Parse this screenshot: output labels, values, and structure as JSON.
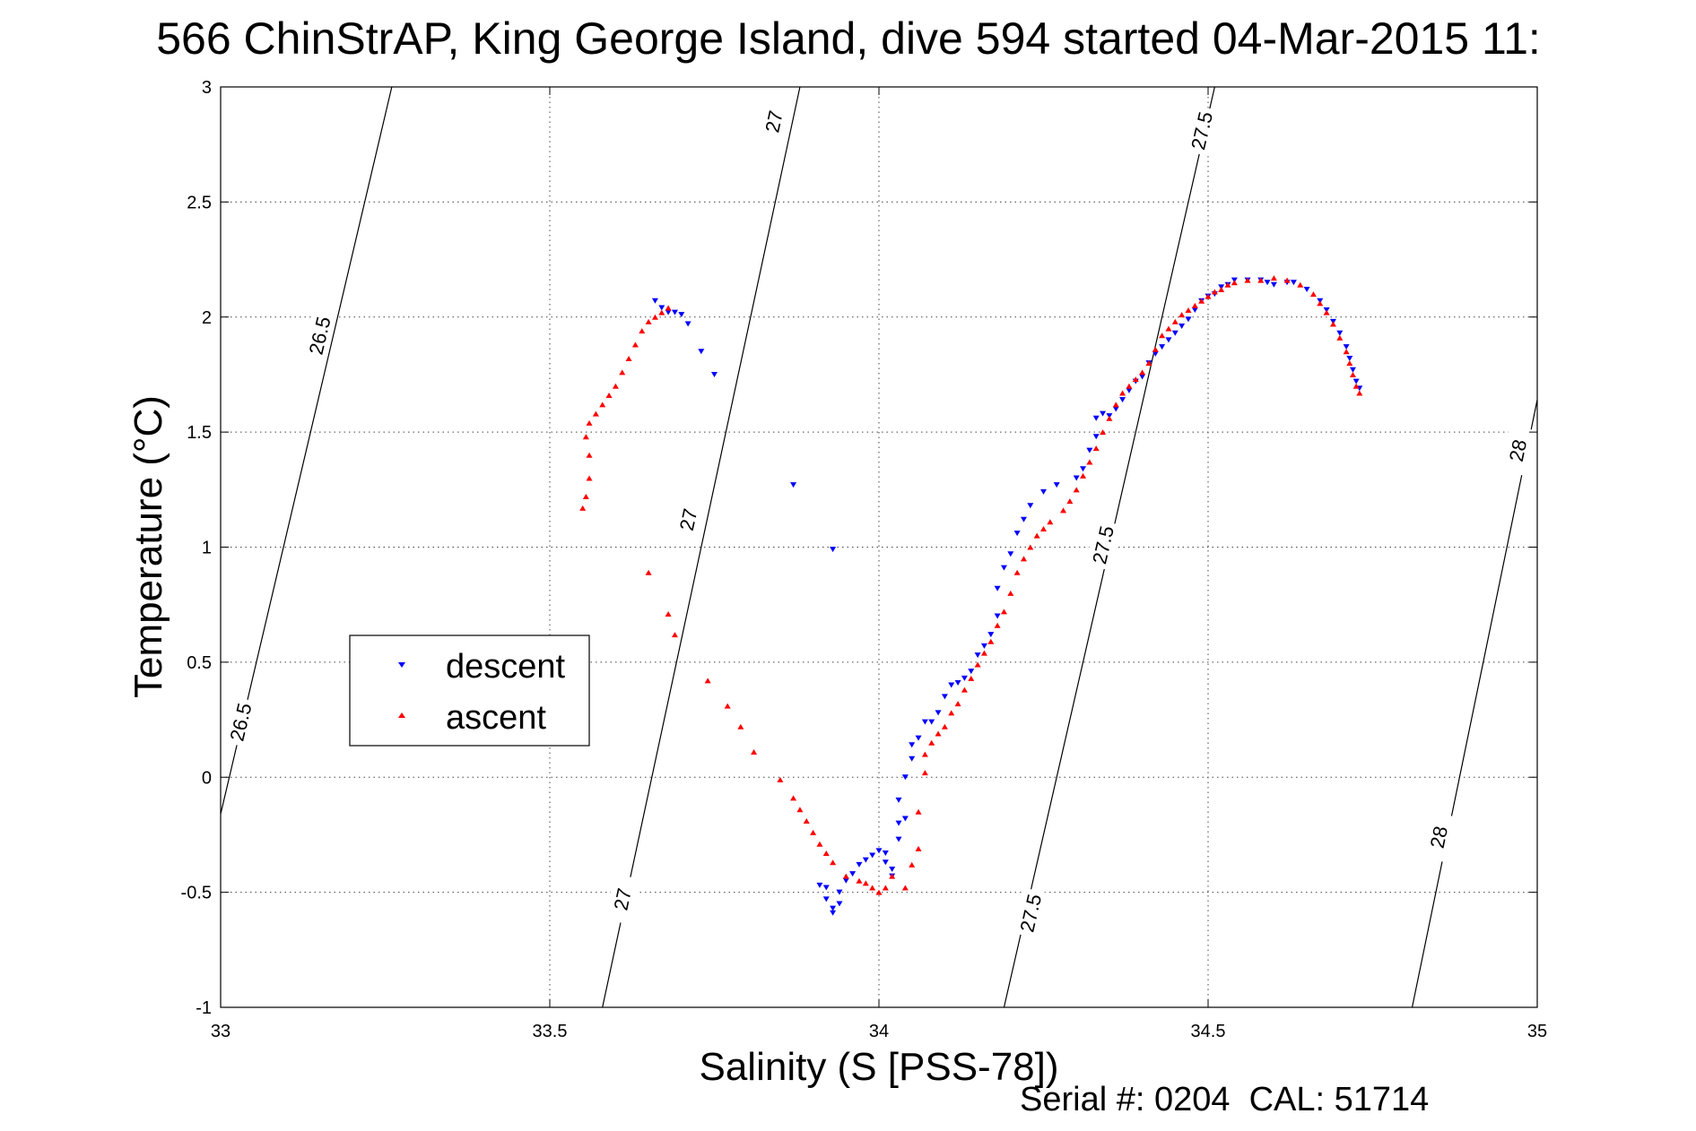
{
  "chart_data": {
    "type": "scatter",
    "title": "566 ChinStrAP, King George Island, dive 594 started 04-Mar-2015 11:",
    "xlabel": "Salinity (S [PSS-78])",
    "ylabel": "Temperature (°C)",
    "xlim": [
      33,
      35
    ],
    "ylim": [
      -1,
      3
    ],
    "xticks": [
      "33",
      "33.5",
      "34",
      "34.5",
      "35"
    ],
    "yticks": [
      "-1",
      "-0.5",
      "0",
      "0.5",
      "1",
      "1.5",
      "2",
      "2.5",
      "3"
    ],
    "grid": true,
    "legend_position": "center-left",
    "footer": "Serial #: 0204  CAL: 51714",
    "series": [
      {
        "name": "descent",
        "color": "#0000ff",
        "marker": "triangle-down",
        "points": [
          [
            33.66,
            2.07
          ],
          [
            33.67,
            2.04
          ],
          [
            33.68,
            2.02
          ],
          [
            33.69,
            2.02
          ],
          [
            33.7,
            2.01
          ],
          [
            33.71,
            1.97
          ],
          [
            33.73,
            1.85
          ],
          [
            33.75,
            1.75
          ],
          [
            33.87,
            1.27
          ],
          [
            33.93,
            0.99
          ],
          [
            33.91,
            -0.47
          ],
          [
            33.92,
            -0.48
          ],
          [
            33.92,
            -0.53
          ],
          [
            33.93,
            -0.57
          ],
          [
            33.93,
            -0.59
          ],
          [
            33.94,
            -0.55
          ],
          [
            33.94,
            -0.5
          ],
          [
            33.95,
            -0.45
          ],
          [
            33.96,
            -0.42
          ],
          [
            33.97,
            -0.38
          ],
          [
            33.98,
            -0.36
          ],
          [
            33.99,
            -0.34
          ],
          [
            34.0,
            -0.32
          ],
          [
            34.01,
            -0.33
          ],
          [
            34.01,
            -0.37
          ],
          [
            34.02,
            -0.4
          ],
          [
            34.02,
            -0.43
          ],
          [
            34.03,
            -0.27
          ],
          [
            34.03,
            -0.2
          ],
          [
            34.04,
            -0.18
          ],
          [
            34.03,
            -0.1
          ],
          [
            34.04,
            0.0
          ],
          [
            34.05,
            0.08
          ],
          [
            34.05,
            0.14
          ],
          [
            34.06,
            0.17
          ],
          [
            34.07,
            0.24
          ],
          [
            34.08,
            0.24
          ],
          [
            34.09,
            0.28
          ],
          [
            34.1,
            0.35
          ],
          [
            34.11,
            0.4
          ],
          [
            34.12,
            0.41
          ],
          [
            34.13,
            0.43
          ],
          [
            34.14,
            0.46
          ],
          [
            34.15,
            0.53
          ],
          [
            34.16,
            0.57
          ],
          [
            34.17,
            0.62
          ],
          [
            34.18,
            0.7
          ],
          [
            34.18,
            0.82
          ],
          [
            34.19,
            0.91
          ],
          [
            34.2,
            0.97
          ],
          [
            34.21,
            1.06
          ],
          [
            34.22,
            1.12
          ],
          [
            34.23,
            1.18
          ],
          [
            34.25,
            1.24
          ],
          [
            34.27,
            1.27
          ],
          [
            34.3,
            1.3
          ],
          [
            34.31,
            1.34
          ],
          [
            34.32,
            1.42
          ],
          [
            34.33,
            1.48
          ],
          [
            34.33,
            1.56
          ],
          [
            34.34,
            1.58
          ],
          [
            34.35,
            1.57
          ],
          [
            34.36,
            1.6
          ],
          [
            34.37,
            1.64
          ],
          [
            34.38,
            1.68
          ],
          [
            34.39,
            1.72
          ],
          [
            34.4,
            1.74
          ],
          [
            34.41,
            1.8
          ],
          [
            34.42,
            1.84
          ],
          [
            34.43,
            1.87
          ],
          [
            34.44,
            1.9
          ],
          [
            34.45,
            1.93
          ],
          [
            34.46,
            1.96
          ],
          [
            34.47,
            1.99
          ],
          [
            34.48,
            2.03
          ],
          [
            34.49,
            2.07
          ],
          [
            34.5,
            2.09
          ],
          [
            34.51,
            2.1
          ],
          [
            34.52,
            2.13
          ],
          [
            34.53,
            2.14
          ],
          [
            34.54,
            2.16
          ],
          [
            34.56,
            2.16
          ],
          [
            34.58,
            2.16
          ],
          [
            34.59,
            2.15
          ],
          [
            34.6,
            2.14
          ],
          [
            34.62,
            2.15
          ],
          [
            34.63,
            2.15
          ],
          [
            34.65,
            2.12
          ],
          [
            34.67,
            2.07
          ],
          [
            34.68,
            2.03
          ],
          [
            34.69,
            1.98
          ],
          [
            34.7,
            1.93
          ],
          [
            34.71,
            1.87
          ],
          [
            34.715,
            1.82
          ],
          [
            34.72,
            1.77
          ],
          [
            34.725,
            1.72
          ],
          [
            34.73,
            1.69
          ]
        ]
      },
      {
        "name": "ascent",
        "color": "#ff0000",
        "marker": "triangle-up",
        "points": [
          [
            33.68,
            2.04
          ],
          [
            33.67,
            2.02
          ],
          [
            33.66,
            2.0
          ],
          [
            33.65,
            1.98
          ],
          [
            33.64,
            1.94
          ],
          [
            33.63,
            1.88
          ],
          [
            33.62,
            1.82
          ],
          [
            33.61,
            1.76
          ],
          [
            33.6,
            1.7
          ],
          [
            33.59,
            1.66
          ],
          [
            33.58,
            1.62
          ],
          [
            33.57,
            1.58
          ],
          [
            33.56,
            1.54
          ],
          [
            33.555,
            1.48
          ],
          [
            33.56,
            1.4
          ],
          [
            33.56,
            1.3
          ],
          [
            33.555,
            1.22
          ],
          [
            33.55,
            1.17
          ],
          [
            33.65,
            0.89
          ],
          [
            33.68,
            0.71
          ],
          [
            33.69,
            0.62
          ],
          [
            33.74,
            0.42
          ],
          [
            33.77,
            0.31
          ],
          [
            33.79,
            0.22
          ],
          [
            33.81,
            0.11
          ],
          [
            33.85,
            -0.01
          ],
          [
            33.87,
            -0.09
          ],
          [
            33.88,
            -0.14
          ],
          [
            33.89,
            -0.19
          ],
          [
            33.9,
            -0.24
          ],
          [
            33.91,
            -0.29
          ],
          [
            33.92,
            -0.33
          ],
          [
            33.93,
            -0.37
          ],
          [
            33.95,
            -0.43
          ],
          [
            33.97,
            -0.45
          ],
          [
            33.98,
            -0.46
          ],
          [
            33.99,
            -0.48
          ],
          [
            34.0,
            -0.5
          ],
          [
            34.01,
            -0.48
          ],
          [
            34.02,
            -0.43
          ],
          [
            34.04,
            -0.48
          ],
          [
            34.05,
            -0.38
          ],
          [
            34.06,
            -0.31
          ],
          [
            34.06,
            -0.15
          ],
          [
            34.07,
            0.02
          ],
          [
            34.07,
            0.1
          ],
          [
            34.08,
            0.15
          ],
          [
            34.09,
            0.19
          ],
          [
            34.1,
            0.22
          ],
          [
            34.11,
            0.28
          ],
          [
            34.12,
            0.32
          ],
          [
            34.13,
            0.38
          ],
          [
            34.14,
            0.43
          ],
          [
            34.15,
            0.49
          ],
          [
            34.16,
            0.54
          ],
          [
            34.17,
            0.59
          ],
          [
            34.18,
            0.66
          ],
          [
            34.19,
            0.72
          ],
          [
            34.2,
            0.8
          ],
          [
            34.21,
            0.89
          ],
          [
            34.22,
            0.95
          ],
          [
            34.23,
            1.0
          ],
          [
            34.24,
            1.05
          ],
          [
            34.25,
            1.08
          ],
          [
            34.26,
            1.11
          ],
          [
            34.28,
            1.16
          ],
          [
            34.29,
            1.2
          ],
          [
            34.3,
            1.25
          ],
          [
            34.31,
            1.31
          ],
          [
            34.32,
            1.37
          ],
          [
            34.33,
            1.43
          ],
          [
            34.34,
            1.5
          ],
          [
            34.35,
            1.56
          ],
          [
            34.36,
            1.62
          ],
          [
            34.37,
            1.67
          ],
          [
            34.38,
            1.7
          ],
          [
            34.39,
            1.73
          ],
          [
            34.4,
            1.76
          ],
          [
            34.41,
            1.8
          ],
          [
            34.42,
            1.86
          ],
          [
            34.43,
            1.92
          ],
          [
            34.44,
            1.95
          ],
          [
            34.45,
            1.98
          ],
          [
            34.46,
            2.01
          ],
          [
            34.47,
            2.03
          ],
          [
            34.48,
            2.05
          ],
          [
            34.49,
            2.07
          ],
          [
            34.5,
            2.09
          ],
          [
            34.51,
            2.11
          ],
          [
            34.52,
            2.12
          ],
          [
            34.53,
            2.14
          ],
          [
            34.54,
            2.15
          ],
          [
            34.56,
            2.16
          ],
          [
            34.58,
            2.16
          ],
          [
            34.6,
            2.17
          ],
          [
            34.62,
            2.16
          ],
          [
            34.64,
            2.14
          ],
          [
            34.66,
            2.1
          ],
          [
            34.67,
            2.06
          ],
          [
            34.68,
            2.02
          ],
          [
            34.69,
            1.97
          ],
          [
            34.7,
            1.91
          ],
          [
            34.71,
            1.85
          ],
          [
            34.715,
            1.8
          ],
          [
            34.72,
            1.75
          ],
          [
            34.725,
            1.7
          ],
          [
            34.73,
            1.67
          ]
        ]
      }
    ],
    "density_contours": [
      {
        "label": "26.5",
        "points": [
          [
            33.0,
            -0.16
          ],
          [
            33.26,
            3.0
          ]
        ],
        "label_positions": [
          [
            33.15,
            1.92
          ],
          [
            33.03,
            0.24
          ]
        ]
      },
      {
        "label": "27",
        "points": [
          [
            33.58,
            -1.0
          ],
          [
            33.88,
            3.0
          ]
        ],
        "label_positions": [
          [
            33.84,
            2.85
          ],
          [
            33.71,
            1.12
          ],
          [
            33.61,
            -0.53
          ]
        ]
      },
      {
        "label": "27.5",
        "points": [
          [
            34.19,
            -1.0
          ],
          [
            34.51,
            3.0
          ]
        ],
        "label_positions": [
          [
            34.49,
            2.81
          ],
          [
            34.34,
            1.01
          ],
          [
            34.23,
            -0.59
          ]
        ]
      },
      {
        "label": "28",
        "points": [
          [
            34.81,
            -1.0
          ],
          [
            35.0,
            1.64
          ]
        ],
        "label_positions": [
          [
            34.97,
            1.42
          ],
          [
            34.85,
            -0.26
          ]
        ]
      }
    ]
  }
}
